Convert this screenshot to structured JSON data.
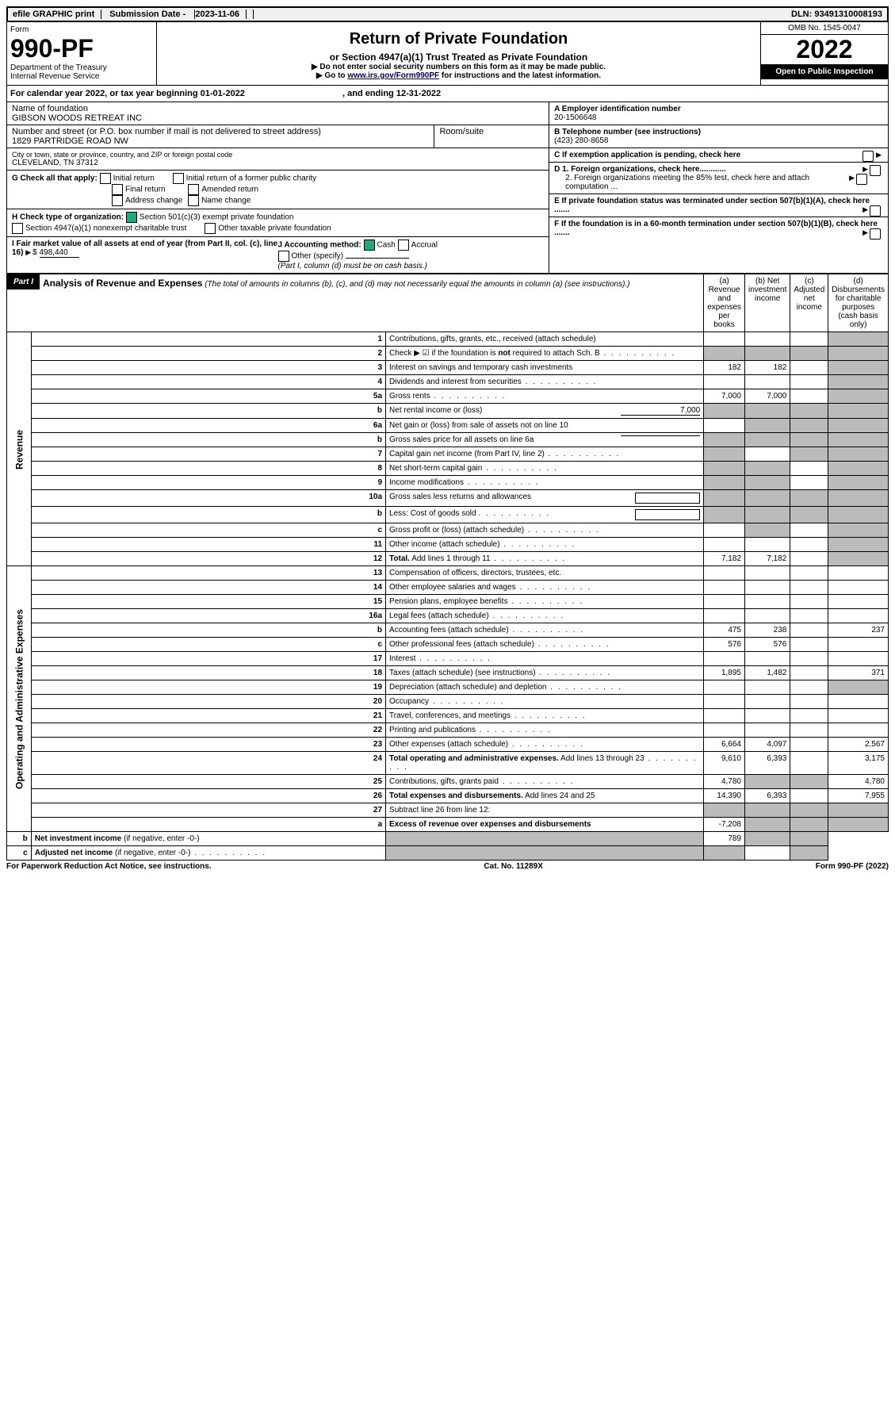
{
  "topbar": {
    "efile": "efile GRAPHIC print",
    "subdate_label": "Submission Date - ",
    "subdate": "2023-11-06",
    "dln_label": "DLN: ",
    "dln": "93491310008193"
  },
  "header": {
    "form_label": "Form",
    "form_num": "990-PF",
    "dept1": "Department of the Treasury",
    "dept2": "Internal Revenue Service",
    "title": "Return of Private Foundation",
    "subtitle": "or Section 4947(a)(1) Trust Treated as Private Foundation",
    "note1": "▶ Do not enter social security numbers on this form as it may be made public.",
    "note2_pre": "▶ Go to ",
    "note2_link": "www.irs.gov/Form990PF",
    "note2_post": " for instructions and the latest information.",
    "omb_label": "OMB No. ",
    "omb": "1545-0047",
    "year": "2022",
    "open": "Open to Public Inspection"
  },
  "calyear": {
    "text_pre": "For calendar year 2022, or tax year beginning ",
    "begin": "01-01-2022",
    "mid": ", and ending ",
    "end": "12-31-2022"
  },
  "info": {
    "name_label": "Name of foundation",
    "name": "GIBSON WOODS RETREAT INC",
    "addr_label": "Number and street (or P.O. box number if mail is not delivered to street address)",
    "addr": "1829 PARTRIDGE ROAD NW",
    "room_label": "Room/suite",
    "city_label": "City or town, state or province, country, and ZIP or foreign postal code",
    "city": "CLEVELAND, TN  37312",
    "a_label": "A Employer identification number",
    "a_val": "20-1506648",
    "b_label": "B Telephone number (see instructions)",
    "b_val": "(423) 280-8658",
    "c_label": "C If exemption application is pending, check here",
    "g_label": "G Check all that apply:",
    "g_opts": [
      "Initial return",
      "Initial return of a former public charity",
      "Final return",
      "Amended return",
      "Address change",
      "Name change"
    ],
    "d1": "D 1. Foreign organizations, check here............",
    "d2": "2. Foreign organizations meeting the 85% test, check here and attach computation ...",
    "h_label": "H Check type of organization:",
    "h1": "Section 501(c)(3) exempt private foundation",
    "h2": "Section 4947(a)(1) nonexempt charitable trust",
    "h3": "Other taxable private foundation",
    "e_label": "E If private foundation status was terminated under section 507(b)(1)(A), check here .......",
    "i_label": "I Fair market value of all assets at end of year (from Part II, col. (c), line 16)",
    "i_val": "498,440",
    "j_label": "J Accounting method:",
    "j_cash": "Cash",
    "j_accr": "Accrual",
    "j_other": "Other (specify)",
    "j_note": "(Part I, column (d) must be on cash basis.)",
    "f_label": "F If the foundation is in a 60-month termination under section 507(b)(1)(B), check here ......."
  },
  "part1": {
    "label": "Part I",
    "title": "Analysis of Revenue and Expenses",
    "note": "(The total of amounts in columns (b), (c), and (d) may not necessarily equal the amounts in column (a) (see instructions).)",
    "cols": {
      "a": "(a) Revenue and expenses per books",
      "b": "(b) Net investment income",
      "c": "(c) Adjusted net income",
      "d": "(d) Disbursements for charitable purposes (cash basis only)"
    }
  },
  "side": {
    "rev": "Revenue",
    "oae": "Operating and Administrative Expenses"
  },
  "rows": [
    {
      "n": "1",
      "t": "Contributions, gifts, grants, etc., received (attach schedule)",
      "a": "",
      "b": "",
      "c": "",
      "d": "",
      "shade_d": true
    },
    {
      "n": "2",
      "t": "Check ▶ ☑ if the foundation is <b>not</b> required to attach Sch. B",
      "dots": true,
      "a": "",
      "b": "",
      "c": "",
      "d": "",
      "shade_all": true
    },
    {
      "n": "3",
      "t": "Interest on savings and temporary cash investments",
      "a": "182",
      "b": "182",
      "c": "",
      "d": "",
      "shade_d": true
    },
    {
      "n": "4",
      "t": "Dividends and interest from securities",
      "dots": true,
      "a": "",
      "b": "",
      "c": "",
      "d": "",
      "shade_d": true
    },
    {
      "n": "5a",
      "t": "Gross rents",
      "dots": true,
      "a": "7,000",
      "b": "7,000",
      "c": "",
      "d": "",
      "shade_d": true
    },
    {
      "n": "b",
      "t": "Net rental income or (loss)",
      "inline": "7,000",
      "a": "",
      "b": "",
      "c": "",
      "d": "",
      "shade_all": true
    },
    {
      "n": "6a",
      "t": "Net gain or (loss) from sale of assets not on line 10",
      "a": "",
      "b": "",
      "c": "",
      "d": "",
      "shade_bcd": true
    },
    {
      "n": "b",
      "t": "Gross sales price for all assets on line 6a",
      "underline": true,
      "a": "",
      "b": "",
      "c": "",
      "d": "",
      "shade_all": true
    },
    {
      "n": "7",
      "t": "Capital gain net income (from Part IV, line 2)",
      "dots": true,
      "shade_a": true,
      "b": "",
      "shade_cd": true
    },
    {
      "n": "8",
      "t": "Net short-term capital gain",
      "dots": true,
      "shade_ab": true,
      "c": "",
      "shade_d": true
    },
    {
      "n": "9",
      "t": "Income modifications",
      "dots": true,
      "shade_ab": true,
      "c": "",
      "shade_d": true
    },
    {
      "n": "10a",
      "t": "Gross sales less returns and allowances",
      "box": true,
      "shade_all": true
    },
    {
      "n": "b",
      "t": "Less: Cost of goods sold",
      "dots": true,
      "box": true,
      "shade_all": true
    },
    {
      "n": "c",
      "t": "Gross profit or (loss) (attach schedule)",
      "dots": true,
      "a": "",
      "shade_b": true,
      "c": "",
      "shade_d": true
    },
    {
      "n": "11",
      "t": "Other income (attach schedule)",
      "dots": true,
      "a": "",
      "b": "",
      "c": "",
      "shade_d": true
    },
    {
      "n": "12",
      "t": "<b>Total.</b> Add lines 1 through 11",
      "dots": true,
      "a": "7,182",
      "b": "7,182",
      "c": "",
      "shade_d": true
    },
    {
      "n": "13",
      "t": "Compensation of officers, directors, trustees, etc.",
      "a": "",
      "b": "",
      "c": "",
      "d": ""
    },
    {
      "n": "14",
      "t": "Other employee salaries and wages",
      "dots": true,
      "a": "",
      "b": "",
      "c": "",
      "d": ""
    },
    {
      "n": "15",
      "t": "Pension plans, employee benefits",
      "dots": true,
      "a": "",
      "b": "",
      "c": "",
      "d": ""
    },
    {
      "n": "16a",
      "t": "Legal fees (attach schedule)",
      "dots": true,
      "a": "",
      "b": "",
      "c": "",
      "d": ""
    },
    {
      "n": "b",
      "t": "Accounting fees (attach schedule)",
      "dots": true,
      "a": "475",
      "b": "238",
      "c": "",
      "d": "237"
    },
    {
      "n": "c",
      "t": "Other professional fees (attach schedule)",
      "dots": true,
      "a": "576",
      "b": "576",
      "c": "",
      "d": ""
    },
    {
      "n": "17",
      "t": "Interest",
      "dots": true,
      "a": "",
      "b": "",
      "c": "",
      "d": ""
    },
    {
      "n": "18",
      "t": "Taxes (attach schedule) (see instructions)",
      "dots": true,
      "a": "1,895",
      "b": "1,482",
      "c": "",
      "d": "371"
    },
    {
      "n": "19",
      "t": "Depreciation (attach schedule) and depletion",
      "dots": true,
      "a": "",
      "b": "",
      "c": "",
      "shade_d": true
    },
    {
      "n": "20",
      "t": "Occupancy",
      "dots": true,
      "a": "",
      "b": "",
      "c": "",
      "d": ""
    },
    {
      "n": "21",
      "t": "Travel, conferences, and meetings",
      "dots": true,
      "a": "",
      "b": "",
      "c": "",
      "d": ""
    },
    {
      "n": "22",
      "t": "Printing and publications",
      "dots": true,
      "a": "",
      "b": "",
      "c": "",
      "d": ""
    },
    {
      "n": "23",
      "t": "Other expenses (attach schedule)",
      "dots": true,
      "a": "6,664",
      "b": "4,097",
      "c": "",
      "d": "2,567"
    },
    {
      "n": "24",
      "t": "<b>Total operating and administrative expenses.</b> Add lines 13 through 23",
      "dots": true,
      "a": "9,610",
      "b": "6,393",
      "c": "",
      "d": "3,175"
    },
    {
      "n": "25",
      "t": "Contributions, gifts, grants paid",
      "dots": true,
      "a": "4,780",
      "shade_bc": true,
      "d": "4,780"
    },
    {
      "n": "26",
      "t": "<b>Total expenses and disbursements.</b> Add lines 24 and 25",
      "a": "14,390",
      "b": "6,393",
      "c": "",
      "d": "7,955"
    },
    {
      "n": "27",
      "t": "Subtract line 26 from line 12:",
      "shade_all": true
    },
    {
      "n": "a",
      "t": "<b>Excess of revenue over expenses and disbursements</b>",
      "a": "-7,208",
      "shade_bcd": true
    },
    {
      "n": "b",
      "t": "<b>Net investment income</b> (if negative, enter -0-)",
      "shade_a": true,
      "b": "789",
      "shade_cd": true
    },
    {
      "n": "c",
      "t": "<b>Adjusted net income</b> (if negative, enter -0-)",
      "dots": true,
      "shade_ab": true,
      "c": "",
      "shade_d": true
    }
  ],
  "footer": {
    "left": "For Paperwork Reduction Act Notice, see instructions.",
    "mid": "Cat. No. 11289X",
    "right": "Form 990-PF (2022)"
  }
}
